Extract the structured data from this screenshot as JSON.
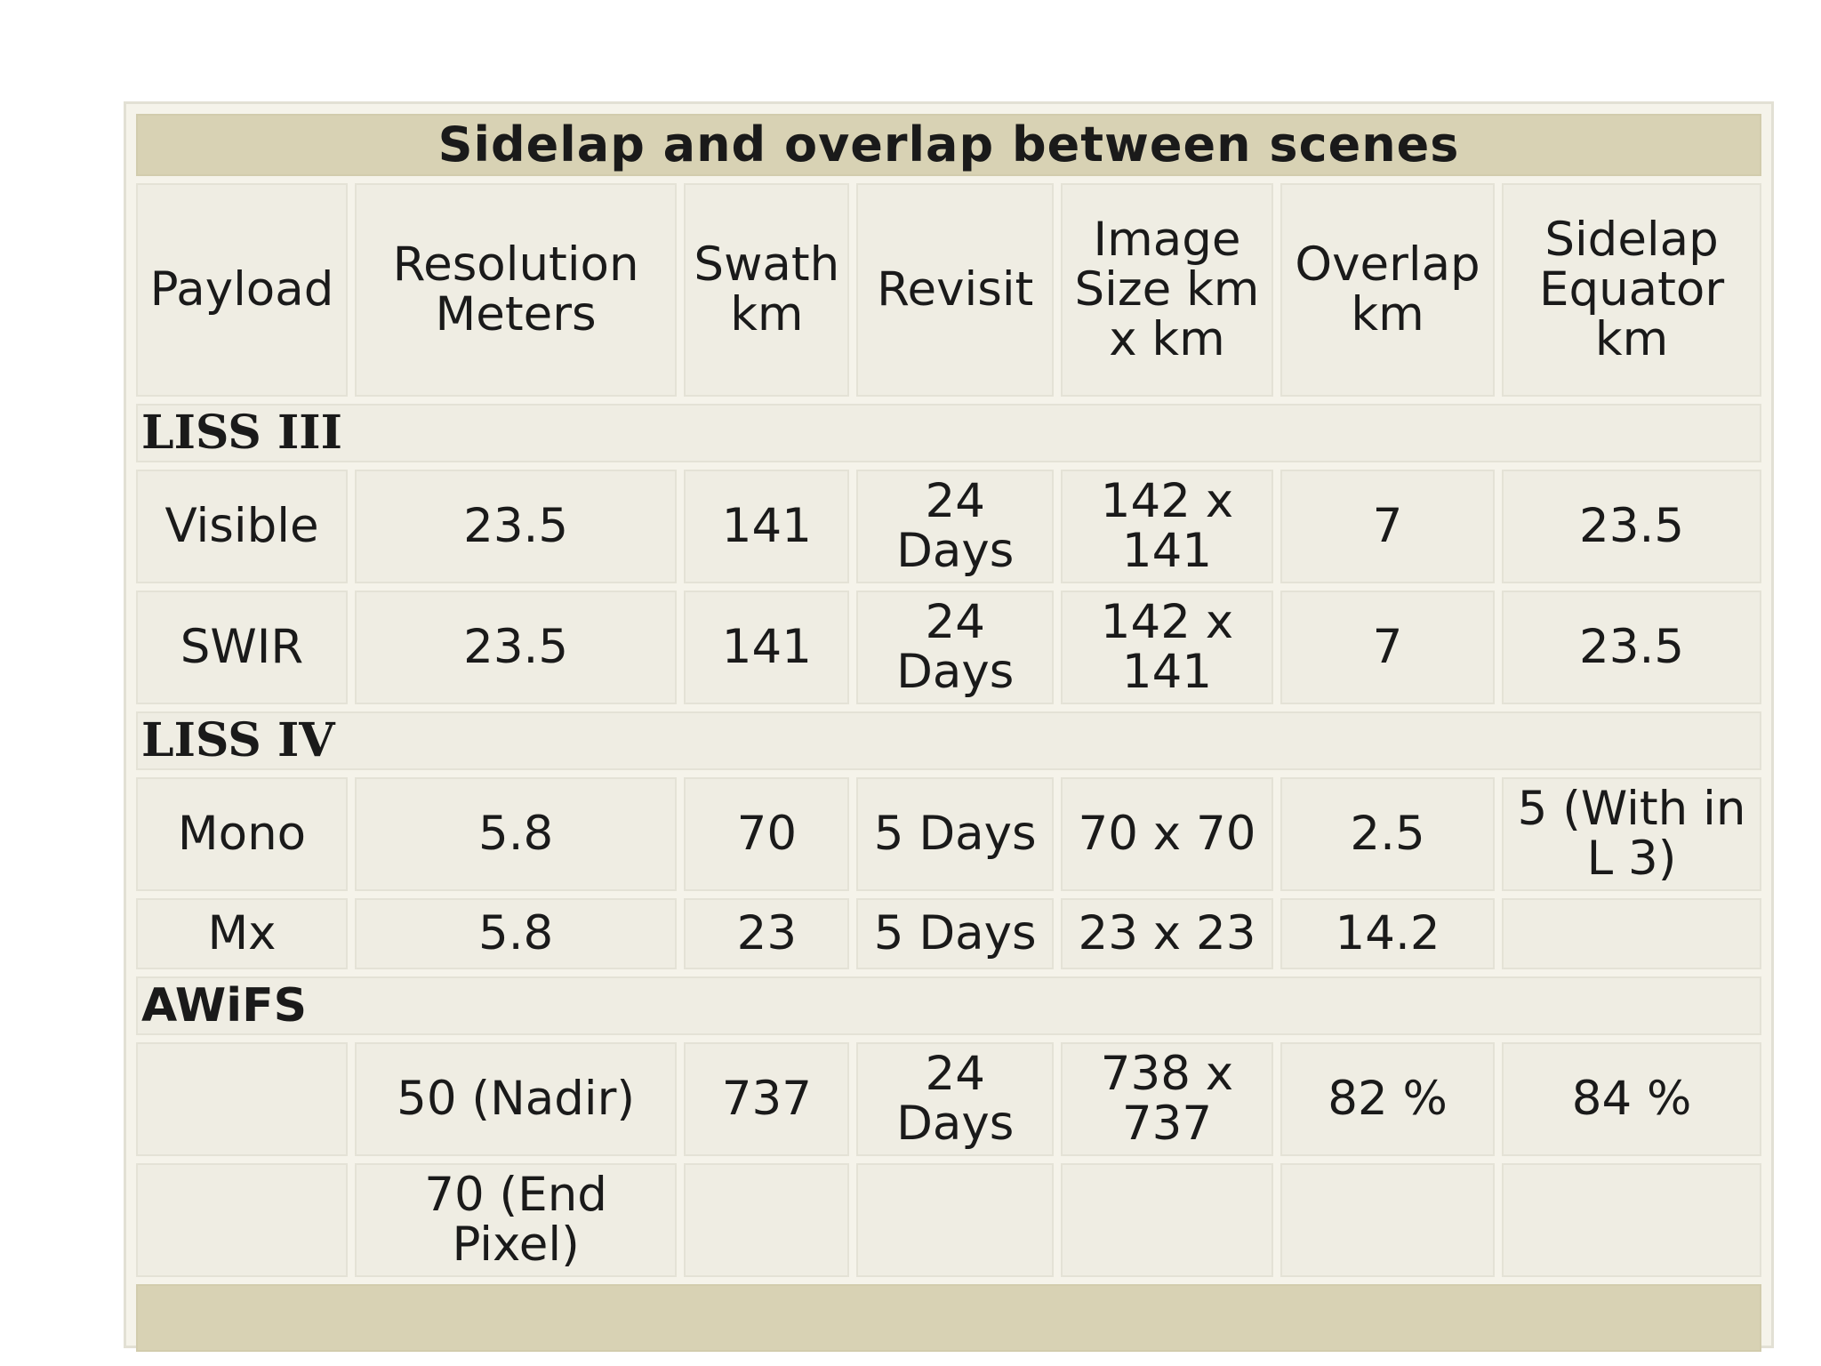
{
  "table": {
    "title": "Sidelap and overlap between scenes",
    "headers": {
      "payload": "Payload",
      "resolution": "Resolution Meters",
      "swath": "Swath km",
      "revisit": "Revisit",
      "image_size": "Image Size km x km",
      "overlap": "Overlap km",
      "sidelap": "Sidelap Equator km"
    },
    "sections": {
      "liss3": {
        "name": "LISS III",
        "rows": [
          {
            "payload": "Visible",
            "resolution": "23.5",
            "swath": "141",
            "revisit": "24 Days",
            "image_size": "142 x 141",
            "overlap": "7",
            "sidelap": "23.5"
          },
          {
            "payload": "SWIR",
            "resolution": "23.5",
            "swath": "141",
            "revisit": "24 Days",
            "image_size": "142 x 141",
            "overlap": "7",
            "sidelap": "23.5"
          }
        ]
      },
      "liss4": {
        "name": "LISS IV",
        "rows": [
          {
            "payload": "Mono",
            "resolution": "5.8",
            "swath": "70",
            "revisit": "5 Days",
            "image_size": "70 x 70",
            "overlap": "2.5",
            "sidelap": "5 (With in L 3)"
          },
          {
            "payload": "Mx",
            "resolution": "5.8",
            "swath": "23",
            "revisit": "5 Days",
            "image_size": "23 x 23",
            "overlap": "14.2",
            "sidelap": ""
          }
        ]
      },
      "awifs": {
        "name": "AWiFS",
        "rows": [
          {
            "payload": "",
            "resolution": "50 (Nadir)",
            "swath": "737",
            "revisit": "24 Days",
            "image_size": "738 x 737",
            "overlap": "82 %",
            "sidelap": "84 %"
          },
          {
            "payload": "",
            "resolution": "70 (End Pixel)",
            "swath": "",
            "revisit": "",
            "image_size": "",
            "overlap": "",
            "sidelap": ""
          }
        ]
      }
    }
  }
}
